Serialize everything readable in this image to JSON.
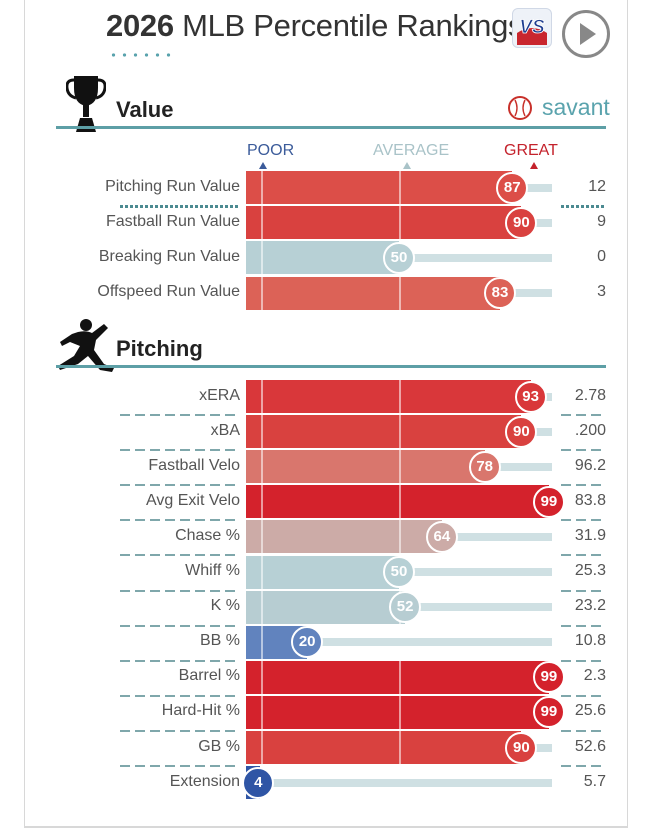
{
  "header": {
    "year": "2026",
    "title_rest": "MLB Percentile Rankings",
    "logo": "VS",
    "play_icon": "play-icon"
  },
  "sections": {
    "value": {
      "title": "Value",
      "icon": "trophy-icon"
    },
    "pitching": {
      "title": "Pitching",
      "icon": "pitcher-icon"
    }
  },
  "savant": {
    "label": "savant",
    "icon": "baseball-icon"
  },
  "scale": {
    "poor": "POOR",
    "average": "AVERAGE",
    "great": "GREAT"
  },
  "colors": {
    "scale_poor": "#3b5b9a",
    "scale_average": "#b9d0d4",
    "scale_great": "#c4222c",
    "accent": "#5aa3ad"
  },
  "value_rows": [
    {
      "label": "Pitching Run Value",
      "percentile": 87,
      "value": "12",
      "color": "#dc4e48"
    },
    {
      "label": "Fastball Run Value",
      "percentile": 90,
      "value": "9",
      "color": "#d9413f"
    },
    {
      "label": "Breaking Run Value",
      "percentile": 50,
      "value": "0",
      "color": "#b7d0d5"
    },
    {
      "label": "Offspeed Run Value",
      "percentile": 83,
      "value": "3",
      "color": "#dc6257"
    }
  ],
  "pitching_rows": [
    {
      "label": "xERA",
      "percentile": 93,
      "value": "2.78",
      "color": "#d9373a"
    },
    {
      "label": "xBA",
      "percentile": 90,
      "value": ".200",
      "color": "#d9413f"
    },
    {
      "label": "Fastball Velo",
      "percentile": 78,
      "value": "96.2",
      "color": "#d9766d"
    },
    {
      "label": "Avg Exit Velo",
      "percentile": 99,
      "value": "83.8",
      "color": "#d4222c"
    },
    {
      "label": "Chase %",
      "percentile": 64,
      "value": "31.9",
      "color": "#ccaba7"
    },
    {
      "label": "Whiff %",
      "percentile": 50,
      "value": "25.3",
      "color": "#b7d0d5"
    },
    {
      "label": "K %",
      "percentile": 52,
      "value": "23.2",
      "color": "#b7cdd2"
    },
    {
      "label": "BB %",
      "percentile": 20,
      "value": "10.8",
      "color": "#6183be"
    },
    {
      "label": "Barrel %",
      "percentile": 99,
      "value": "2.3",
      "color": "#d4222c"
    },
    {
      "label": "Hard-Hit %",
      "percentile": 99,
      "value": "25.6",
      "color": "#d4222c"
    },
    {
      "label": "GB %",
      "percentile": 90,
      "value": "52.6",
      "color": "#d9413f"
    },
    {
      "label": "Extension",
      "percentile": 4,
      "value": "5.7",
      "color": "#2f55a5"
    }
  ]
}
